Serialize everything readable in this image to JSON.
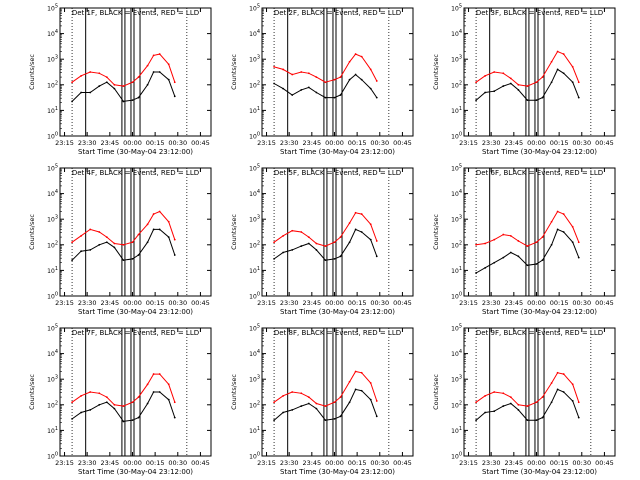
{
  "figure": {
    "colors": {
      "events": "#000000",
      "lld": "#ff0000",
      "axes": "#000000"
    }
  },
  "chart_data": [
    {
      "type": "line",
      "title": "Det 1F, BLACK = Events, RED = LLD",
      "xlabel": "Start Time (30-May-04 23:12:00)",
      "ylabel": "Counts/sec",
      "x_ticks": [
        "23:15",
        "23:30",
        "23:45",
        "00:00",
        "00:15",
        "00:30",
        "00:45"
      ],
      "y_ticks": [
        "10^0",
        "10^1",
        "10^2",
        "10^3",
        "10^4",
        "10^5"
      ],
      "ylim_log10": [
        0,
        5
      ],
      "yscale": "log",
      "grid": false,
      "x_minutes_from_start": [
        8,
        14,
        20,
        26,
        31,
        36,
        42,
        48,
        52,
        58,
        62,
        66,
        72,
        76
      ],
      "series": [
        {
          "name": "Events",
          "color": "#000000",
          "log10_values": [
            1.35,
            1.7,
            1.7,
            1.95,
            2.1,
            1.85,
            1.35,
            1.4,
            1.5,
            2.0,
            2.5,
            2.5,
            2.2,
            1.55
          ]
        },
        {
          "name": "LLD",
          "color": "#ff0000",
          "log10_values": [
            2.1,
            2.35,
            2.5,
            2.45,
            2.3,
            2.0,
            1.95,
            2.1,
            2.3,
            2.75,
            3.15,
            3.2,
            2.8,
            2.1
          ]
        }
      ]
    },
    {
      "type": "line",
      "title": "Det 2F, BLACK = Events, RED = LLD",
      "xlabel": "Start Time (30-May-04 23:12:00)",
      "ylabel": "Counts/sec",
      "x_ticks": [
        "23:15",
        "23:30",
        "23:45",
        "00:00",
        "00:15",
        "00:30",
        "00:45"
      ],
      "y_ticks": [
        "10^0",
        "10^1",
        "10^2",
        "10^3",
        "10^4",
        "10^5"
      ],
      "ylim_log10": [
        0,
        5
      ],
      "yscale": "log",
      "grid": false,
      "x_minutes_from_start": [
        8,
        14,
        20,
        26,
        31,
        36,
        42,
        48,
        52,
        58,
        62,
        66,
        72,
        76
      ],
      "series": [
        {
          "name": "Events",
          "color": "#000000",
          "log10_values": [
            2.05,
            1.85,
            1.6,
            1.8,
            1.9,
            1.7,
            1.5,
            1.5,
            1.6,
            2.2,
            2.4,
            2.2,
            1.85,
            1.5
          ]
        },
        {
          "name": "LLD",
          "color": "#ff0000",
          "log10_values": [
            2.7,
            2.6,
            2.4,
            2.5,
            2.45,
            2.3,
            2.1,
            2.2,
            2.3,
            2.9,
            3.2,
            3.1,
            2.6,
            2.15
          ]
        }
      ]
    },
    {
      "type": "line",
      "title": "Det 3F, BLACK = Events, RED = LLD",
      "xlabel": "Start Time (30-May-04 23:12:00)",
      "ylabel": "Counts/sec",
      "x_ticks": [
        "23:15",
        "23:30",
        "23:45",
        "00:00",
        "00:15",
        "00:30",
        "00:45"
      ],
      "y_ticks": [
        "10^0",
        "10^1",
        "10^2",
        "10^3",
        "10^4",
        "10^5"
      ],
      "ylim_log10": [
        0,
        5
      ],
      "yscale": "log",
      "grid": false,
      "x_minutes_from_start": [
        8,
        14,
        20,
        26,
        31,
        36,
        42,
        48,
        52,
        58,
        62,
        66,
        72,
        76
      ],
      "series": [
        {
          "name": "Events",
          "color": "#000000",
          "log10_values": [
            1.4,
            1.7,
            1.75,
            1.95,
            2.05,
            1.8,
            1.4,
            1.4,
            1.5,
            2.1,
            2.6,
            2.45,
            2.1,
            1.5
          ]
        },
        {
          "name": "LLD",
          "color": "#ff0000",
          "log10_values": [
            2.1,
            2.35,
            2.5,
            2.45,
            2.25,
            2.0,
            1.95,
            2.1,
            2.3,
            2.9,
            3.3,
            3.2,
            2.7,
            2.1
          ]
        }
      ]
    },
    {
      "type": "line",
      "title": "Det 4F, BLACK = Events, RED = LLD",
      "xlabel": "Start Time (30-May-04 23:12:00)",
      "ylabel": "Counts/sec",
      "x_ticks": [
        "23:15",
        "23:30",
        "23:45",
        "00:00",
        "00:15",
        "00:30",
        "00:45"
      ],
      "y_ticks": [
        "10^0",
        "10^1",
        "10^2",
        "10^3",
        "10^4",
        "10^5"
      ],
      "ylim_log10": [
        0,
        5
      ],
      "yscale": "log",
      "grid": false,
      "x_minutes_from_start": [
        8,
        14,
        20,
        26,
        31,
        36,
        42,
        48,
        52,
        58,
        62,
        66,
        72,
        76
      ],
      "series": [
        {
          "name": "Events",
          "color": "#000000",
          "log10_values": [
            1.4,
            1.75,
            1.8,
            2.0,
            2.1,
            1.9,
            1.4,
            1.45,
            1.6,
            2.1,
            2.6,
            2.6,
            2.3,
            1.6
          ]
        },
        {
          "name": "LLD",
          "color": "#ff0000",
          "log10_values": [
            2.1,
            2.35,
            2.6,
            2.5,
            2.3,
            2.05,
            2.0,
            2.1,
            2.4,
            2.8,
            3.2,
            3.3,
            2.9,
            2.2
          ]
        }
      ]
    },
    {
      "type": "line",
      "title": "Det 5F, BLACK = Events, RED = LLD",
      "xlabel": "Start Time (30-May-04 23:12:00)",
      "ylabel": "Counts/sec",
      "x_ticks": [
        "23:15",
        "23:30",
        "23:45",
        "00:00",
        "00:15",
        "00:30",
        "00:45"
      ],
      "y_ticks": [
        "10^0",
        "10^1",
        "10^2",
        "10^3",
        "10^4",
        "10^5"
      ],
      "ylim_log10": [
        0,
        5
      ],
      "yscale": "log",
      "grid": false,
      "x_minutes_from_start": [
        8,
        14,
        20,
        26,
        31,
        36,
        42,
        48,
        52,
        58,
        62,
        66,
        72,
        76
      ],
      "series": [
        {
          "name": "Events",
          "color": "#000000",
          "log10_values": [
            1.45,
            1.7,
            1.8,
            1.95,
            2.05,
            1.8,
            1.4,
            1.45,
            1.55,
            2.1,
            2.6,
            2.5,
            2.2,
            1.55
          ]
        },
        {
          "name": "LLD",
          "color": "#ff0000",
          "log10_values": [
            2.1,
            2.35,
            2.55,
            2.5,
            2.3,
            2.05,
            1.95,
            2.1,
            2.3,
            2.85,
            3.25,
            3.2,
            2.8,
            2.15
          ]
        }
      ]
    },
    {
      "type": "line",
      "title": "Det 6F, BLACK = Events, RED = LLD",
      "xlabel": "Start Time (30-May-04 23:12:00)",
      "ylabel": "Counts/sec",
      "x_ticks": [
        "23:15",
        "23:30",
        "23:45",
        "00:00",
        "00:15",
        "00:30",
        "00:45"
      ],
      "y_ticks": [
        "10^0",
        "10^1",
        "10^2",
        "10^3",
        "10^4",
        "10^5"
      ],
      "ylim_log10": [
        0,
        5
      ],
      "yscale": "log",
      "grid": false,
      "x_minutes_from_start": [
        8,
        14,
        20,
        26,
        31,
        36,
        42,
        48,
        52,
        58,
        62,
        66,
        72,
        76
      ],
      "series": [
        {
          "name": "Events",
          "color": "#000000",
          "log10_values": [
            0.9,
            1.1,
            1.3,
            1.5,
            1.7,
            1.55,
            1.2,
            1.25,
            1.4,
            2.0,
            2.6,
            2.5,
            2.1,
            1.5
          ]
        },
        {
          "name": "LLD",
          "color": "#ff0000",
          "log10_values": [
            2.0,
            2.05,
            2.2,
            2.4,
            2.35,
            2.15,
            1.95,
            2.1,
            2.3,
            2.9,
            3.3,
            3.2,
            2.7,
            2.1
          ]
        }
      ]
    },
    {
      "type": "line",
      "title": "Det 7F, BLACK = Events, RED = LLD",
      "xlabel": "Start Time (30-May-04 23:12:00)",
      "ylabel": "Counts/sec",
      "x_ticks": [
        "23:15",
        "23:30",
        "23:45",
        "00:00",
        "00:15",
        "00:30",
        "00:45"
      ],
      "y_ticks": [
        "10^0",
        "10^1",
        "10^2",
        "10^3",
        "10^4",
        "10^5"
      ],
      "ylim_log10": [
        0,
        5
      ],
      "yscale": "log",
      "grid": false,
      "x_minutes_from_start": [
        8,
        14,
        20,
        26,
        31,
        36,
        42,
        48,
        52,
        58,
        62,
        66,
        72,
        76
      ],
      "series": [
        {
          "name": "Events",
          "color": "#000000",
          "log10_values": [
            1.45,
            1.7,
            1.8,
            2.0,
            2.1,
            1.85,
            1.35,
            1.4,
            1.5,
            2.05,
            2.5,
            2.5,
            2.2,
            1.5
          ]
        },
        {
          "name": "LLD",
          "color": "#ff0000",
          "log10_values": [
            2.1,
            2.35,
            2.5,
            2.45,
            2.3,
            2.0,
            1.95,
            2.1,
            2.3,
            2.8,
            3.2,
            3.2,
            2.8,
            2.1
          ]
        }
      ]
    },
    {
      "type": "line",
      "title": "Det 8F, BLACK = Events, RED = LLD",
      "xlabel": "Start Time (30-May-04 23:12:00)",
      "ylabel": "Counts/sec",
      "x_ticks": [
        "23:15",
        "23:30",
        "23:45",
        "00:00",
        "00:15",
        "00:30",
        "00:45"
      ],
      "y_ticks": [
        "10^0",
        "10^1",
        "10^2",
        "10^3",
        "10^4",
        "10^5"
      ],
      "ylim_log10": [
        0,
        5
      ],
      "yscale": "log",
      "grid": false,
      "x_minutes_from_start": [
        8,
        14,
        20,
        26,
        31,
        36,
        42,
        48,
        52,
        58,
        62,
        66,
        72,
        76
      ],
      "series": [
        {
          "name": "Events",
          "color": "#000000",
          "log10_values": [
            1.4,
            1.7,
            1.8,
            1.95,
            2.05,
            1.85,
            1.4,
            1.45,
            1.55,
            2.1,
            2.6,
            2.55,
            2.2,
            1.55
          ]
        },
        {
          "name": "LLD",
          "color": "#ff0000",
          "log10_values": [
            2.1,
            2.35,
            2.5,
            2.45,
            2.3,
            2.05,
            1.95,
            2.1,
            2.3,
            2.9,
            3.3,
            3.25,
            2.85,
            2.15
          ]
        }
      ]
    },
    {
      "type": "line",
      "title": "Det 9F, BLACK = Events, RED = LLD",
      "xlabel": "Start Time (30-May-04 23:12:00)",
      "ylabel": "Counts/sec",
      "x_ticks": [
        "23:15",
        "23:30",
        "23:45",
        "00:00",
        "00:15",
        "00:30",
        "00:45"
      ],
      "y_ticks": [
        "10^0",
        "10^1",
        "10^2",
        "10^3",
        "10^4",
        "10^5"
      ],
      "ylim_log10": [
        0,
        5
      ],
      "yscale": "log",
      "grid": false,
      "x_minutes_from_start": [
        8,
        14,
        20,
        26,
        31,
        36,
        42,
        48,
        52,
        58,
        62,
        66,
        72,
        76
      ],
      "series": [
        {
          "name": "Events",
          "color": "#000000",
          "log10_values": [
            1.4,
            1.7,
            1.75,
            1.95,
            2.05,
            1.8,
            1.4,
            1.4,
            1.5,
            2.1,
            2.6,
            2.5,
            2.15,
            1.5
          ]
        },
        {
          "name": "LLD",
          "color": "#ff0000",
          "log10_values": [
            2.1,
            2.35,
            2.5,
            2.45,
            2.3,
            2.0,
            1.95,
            2.1,
            2.3,
            2.85,
            3.25,
            3.2,
            2.8,
            2.1
          ]
        }
      ]
    }
  ]
}
